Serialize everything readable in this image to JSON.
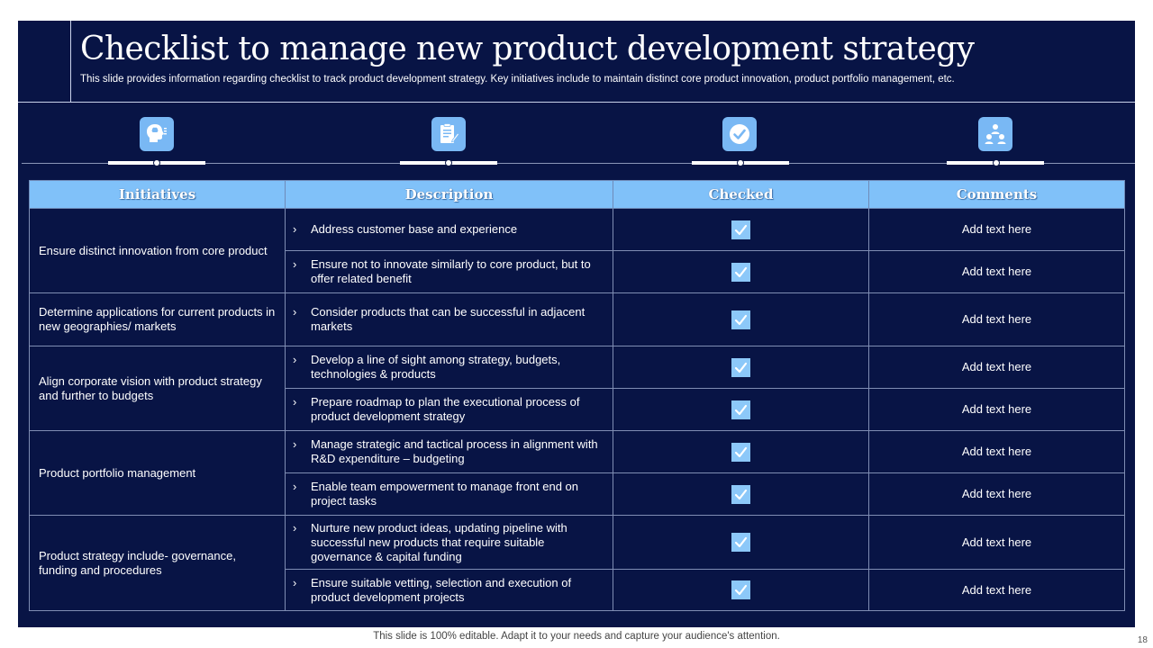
{
  "slide": {
    "title": "Checklist to manage new product development strategy",
    "subtitle": "This slide provides information regarding checklist to track product development strategy. Key initiatives include to maintain distinct core product innovation, product portfolio management, etc."
  },
  "icons": [
    "brain-head-icon",
    "checklist-document-icon",
    "checkmark-circle-icon",
    "team-hierarchy-icon"
  ],
  "colors": {
    "background": "#081445",
    "header": "#80c1f9",
    "icon_tile": "#79b8f4",
    "checkbox": "#8cc8f9"
  },
  "table": {
    "headers": [
      "Initiatives",
      "Description",
      "Checked",
      "Comments"
    ],
    "groups": [
      {
        "initiative": "Ensure distinct innovation  from core product",
        "items": [
          {
            "description": "Address customer base and experience",
            "checked": true,
            "comment": "Add text here"
          },
          {
            "description": "Ensure not to innovate  similarly to core product, but to offer related benefit",
            "checked": true,
            "comment": "Add text here"
          }
        ]
      },
      {
        "initiative": "Determine applications for current products in new geographies/  markets",
        "items": [
          {
            "description": "Consider products that can be successful in adjacent markets",
            "checked": true,
            "comment": "Add text here"
          }
        ]
      },
      {
        "initiative": "Align corporate vision with product strategy and further to budgets",
        "items": [
          {
            "description": "Develop  a line of sight among strategy, budgets, technologies & products",
            "checked": true,
            "comment": "Add text here"
          },
          {
            "description": "Prepare roadmap to plan the executional process of product development  strategy",
            "checked": true,
            "comment": "Add text here"
          }
        ]
      },
      {
        "initiative": "Product portfolio management",
        "items": [
          {
            "description": "Manage strategic and tactical process in alignment with R&D expenditure – budgeting",
            "checked": true,
            "comment": "Add text here"
          },
          {
            "description": "Enable team empowerment  to manage front end on project tasks",
            "checked": true,
            "comment": "Add text here"
          }
        ]
      },
      {
        "initiative": "Product strategy include-  governance, funding and procedures",
        "items": [
          {
            "description": "Nurture new product ideas, updating pipeline with successful new products that require suitable governance  & capital funding",
            "checked": true,
            "comment": "Add text here"
          },
          {
            "description": "Ensure suitable vetting, selection and execution of product development  projects",
            "checked": true,
            "comment": "Add text here"
          }
        ]
      }
    ]
  },
  "footer": "This slide is 100% editable. Adapt it to your needs and capture your audience's attention.",
  "page_number": "18"
}
